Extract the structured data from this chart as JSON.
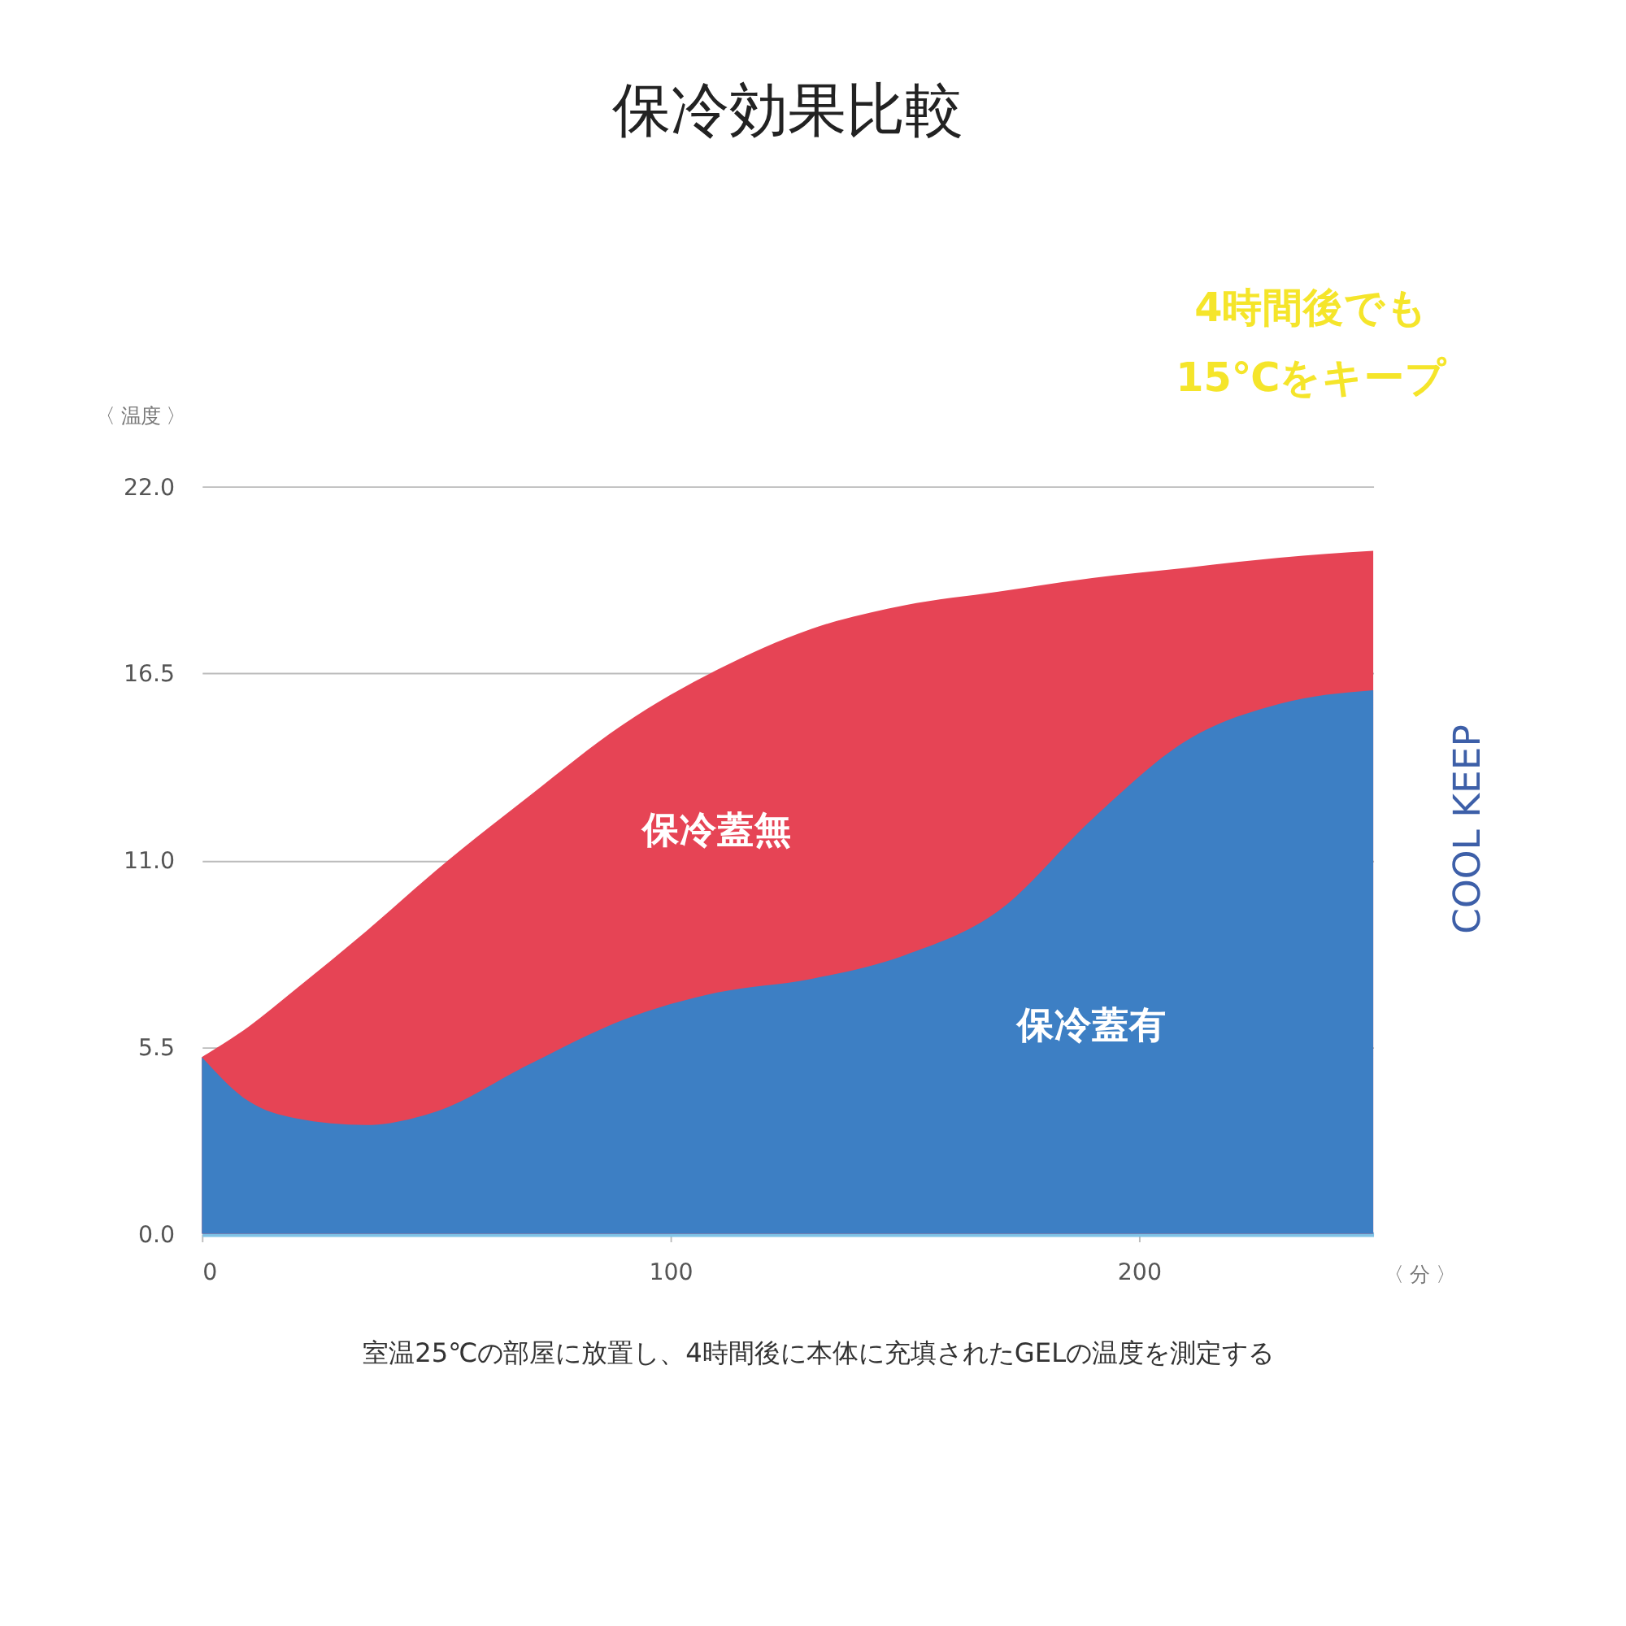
{
  "chart_data": {
    "type": "area",
    "title": "保冷効果比較",
    "ylabel": "〈 温度 〉",
    "xlabel": "〈 分 〉",
    "x": [
      0,
      10,
      20,
      35,
      50,
      70,
      90,
      110,
      130,
      150,
      170,
      190,
      210,
      230,
      250
    ],
    "series": [
      {
        "name": "保冷蓋無",
        "color": "#e64455",
        "values": [
          5.2,
          6.1,
          7.2,
          8.9,
          10.7,
          12.9,
          15.0,
          16.6,
          17.8,
          18.5,
          18.9,
          19.3,
          19.6,
          19.9,
          20.1
        ]
      },
      {
        "name": "保冷蓋有",
        "color": "#3d7fc4",
        "values": [
          5.2,
          3.9,
          3.4,
          3.2,
          3.6,
          5.0,
          6.3,
          7.1,
          7.5,
          8.2,
          9.5,
          12.2,
          14.5,
          15.6,
          16.0
        ]
      }
    ],
    "xlim": [
      0,
      250
    ],
    "xticks": [
      0,
      100,
      200
    ],
    "ylim": [
      0,
      22
    ],
    "yticks": [
      {
        "value": 0,
        "label": "0.0"
      },
      {
        "value": 5.5,
        "label": "5.5"
      },
      {
        "value": 11,
        "label": "11.0"
      },
      {
        "value": 16.5,
        "label": "16.5"
      },
      {
        "value": 22,
        "label": "22.0"
      }
    ],
    "grid": "y",
    "annotations": [
      "4時間後でも",
      "15℃をキープ",
      "COOL KEEP",
      "室温25℃の部屋に放置し、4時間後に本体に充填されたGELの温度を測定する"
    ]
  }
}
